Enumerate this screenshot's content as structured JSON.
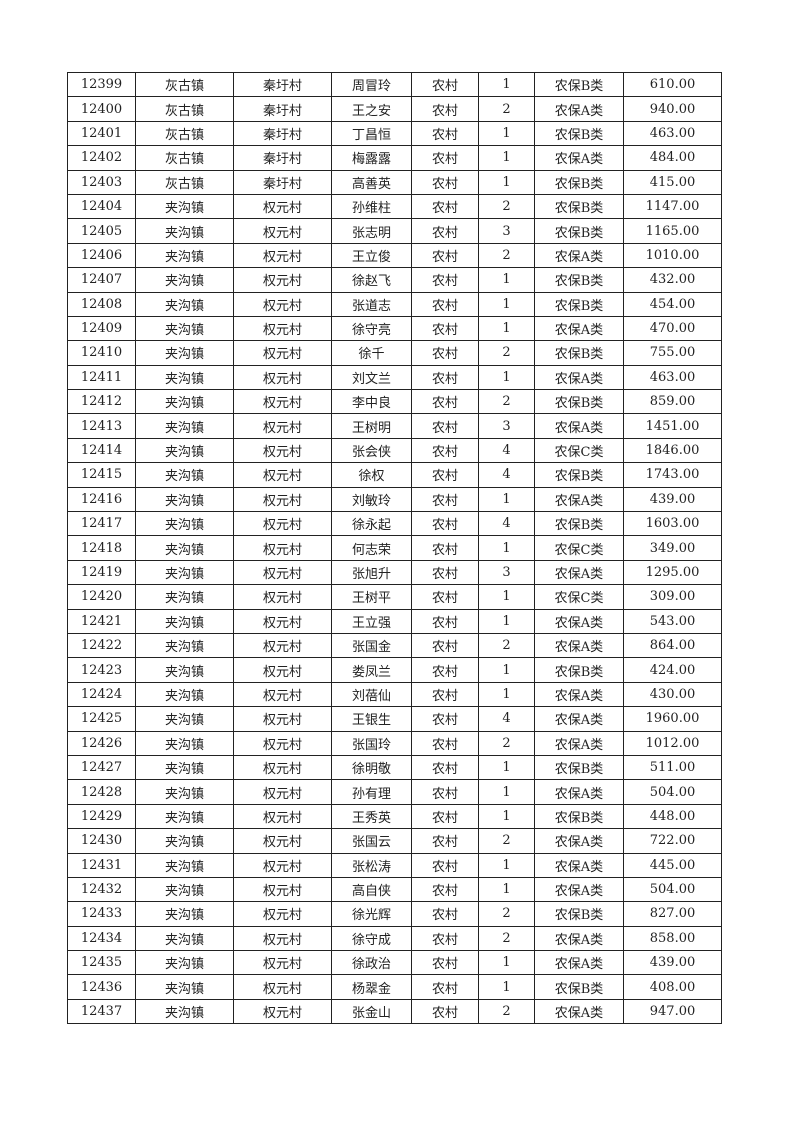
{
  "table": {
    "rows": [
      [
        "12399",
        "灰古镇",
        "秦圩村",
        "周冒玲",
        "农村",
        "1",
        "农保B类",
        "610.00"
      ],
      [
        "12400",
        "灰古镇",
        "秦圩村",
        "王之安",
        "农村",
        "2",
        "农保A类",
        "940.00"
      ],
      [
        "12401",
        "灰古镇",
        "秦圩村",
        "丁昌恒",
        "农村",
        "1",
        "农保B类",
        "463.00"
      ],
      [
        "12402",
        "灰古镇",
        "秦圩村",
        "梅露露",
        "农村",
        "1",
        "农保A类",
        "484.00"
      ],
      [
        "12403",
        "灰古镇",
        "秦圩村",
        "高善英",
        "农村",
        "1",
        "农保B类",
        "415.00"
      ],
      [
        "12404",
        "夹沟镇",
        "权元村",
        "孙维柱",
        "农村",
        "2",
        "农保B类",
        "1147.00"
      ],
      [
        "12405",
        "夹沟镇",
        "权元村",
        "张志明",
        "农村",
        "3",
        "农保B类",
        "1165.00"
      ],
      [
        "12406",
        "夹沟镇",
        "权元村",
        "王立俊",
        "农村",
        "2",
        "农保A类",
        "1010.00"
      ],
      [
        "12407",
        "夹沟镇",
        "权元村",
        "徐赵飞",
        "农村",
        "1",
        "农保B类",
        "432.00"
      ],
      [
        "12408",
        "夹沟镇",
        "权元村",
        "张道志",
        "农村",
        "1",
        "农保B类",
        "454.00"
      ],
      [
        "12409",
        "夹沟镇",
        "权元村",
        "徐守亮",
        "农村",
        "1",
        "农保A类",
        "470.00"
      ],
      [
        "12410",
        "夹沟镇",
        "权元村",
        "徐千",
        "农村",
        "2",
        "农保B类",
        "755.00"
      ],
      [
        "12411",
        "夹沟镇",
        "权元村",
        "刘文兰",
        "农村",
        "1",
        "农保A类",
        "463.00"
      ],
      [
        "12412",
        "夹沟镇",
        "权元村",
        "李中良",
        "农村",
        "2",
        "农保B类",
        "859.00"
      ],
      [
        "12413",
        "夹沟镇",
        "权元村",
        "王树明",
        "农村",
        "3",
        "农保A类",
        "1451.00"
      ],
      [
        "12414",
        "夹沟镇",
        "权元村",
        "张会侠",
        "农村",
        "4",
        "农保C类",
        "1846.00"
      ],
      [
        "12415",
        "夹沟镇",
        "权元村",
        "徐权",
        "农村",
        "4",
        "农保B类",
        "1743.00"
      ],
      [
        "12416",
        "夹沟镇",
        "权元村",
        "刘敏玲",
        "农村",
        "1",
        "农保A类",
        "439.00"
      ],
      [
        "12417",
        "夹沟镇",
        "权元村",
        "徐永起",
        "农村",
        "4",
        "农保B类",
        "1603.00"
      ],
      [
        "12418",
        "夹沟镇",
        "权元村",
        "何志荣",
        "农村",
        "1",
        "农保C类",
        "349.00"
      ],
      [
        "12419",
        "夹沟镇",
        "权元村",
        "张旭升",
        "农村",
        "3",
        "农保A类",
        "1295.00"
      ],
      [
        "12420",
        "夹沟镇",
        "权元村",
        "王树平",
        "农村",
        "1",
        "农保C类",
        "309.00"
      ],
      [
        "12421",
        "夹沟镇",
        "权元村",
        "王立强",
        "农村",
        "1",
        "农保A类",
        "543.00"
      ],
      [
        "12422",
        "夹沟镇",
        "权元村",
        "张国金",
        "农村",
        "2",
        "农保A类",
        "864.00"
      ],
      [
        "12423",
        "夹沟镇",
        "权元村",
        "娄凤兰",
        "农村",
        "1",
        "农保B类",
        "424.00"
      ],
      [
        "12424",
        "夹沟镇",
        "权元村",
        "刘蓓仙",
        "农村",
        "1",
        "农保A类",
        "430.00"
      ],
      [
        "12425",
        "夹沟镇",
        "权元村",
        "王银生",
        "农村",
        "4",
        "农保A类",
        "1960.00"
      ],
      [
        "12426",
        "夹沟镇",
        "权元村",
        "张国玲",
        "农村",
        "2",
        "农保A类",
        "1012.00"
      ],
      [
        "12427",
        "夹沟镇",
        "权元村",
        "徐明敬",
        "农村",
        "1",
        "农保B类",
        "511.00"
      ],
      [
        "12428",
        "夹沟镇",
        "权元村",
        "孙有理",
        "农村",
        "1",
        "农保A类",
        "504.00"
      ],
      [
        "12429",
        "夹沟镇",
        "权元村",
        "王秀英",
        "农村",
        "1",
        "农保B类",
        "448.00"
      ],
      [
        "12430",
        "夹沟镇",
        "权元村",
        "张国云",
        "农村",
        "2",
        "农保A类",
        "722.00"
      ],
      [
        "12431",
        "夹沟镇",
        "权元村",
        "张松涛",
        "农村",
        "1",
        "农保A类",
        "445.00"
      ],
      [
        "12432",
        "夹沟镇",
        "权元村",
        "高自侠",
        "农村",
        "1",
        "农保A类",
        "504.00"
      ],
      [
        "12433",
        "夹沟镇",
        "权元村",
        "徐光辉",
        "农村",
        "2",
        "农保B类",
        "827.00"
      ],
      [
        "12434",
        "夹沟镇",
        "权元村",
        "徐守成",
        "农村",
        "2",
        "农保A类",
        "858.00"
      ],
      [
        "12435",
        "夹沟镇",
        "权元村",
        "徐政治",
        "农村",
        "1",
        "农保A类",
        "439.00"
      ],
      [
        "12436",
        "夹沟镇",
        "权元村",
        "杨翠金",
        "农村",
        "1",
        "农保B类",
        "408.00"
      ],
      [
        "12437",
        "夹沟镇",
        "权元村",
        "张金山",
        "农村",
        "2",
        "农保A类",
        "947.00"
      ]
    ]
  }
}
